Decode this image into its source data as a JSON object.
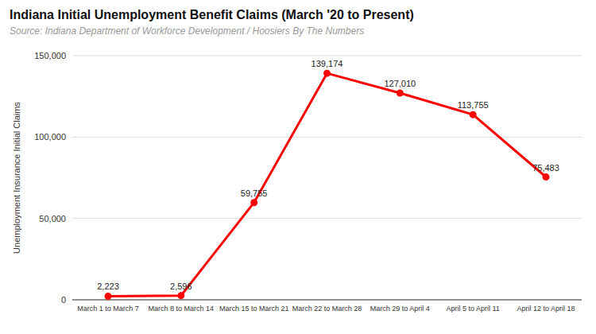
{
  "chart_data": {
    "type": "line",
    "title": "Indiana Initial Unemployment Benefit Claims (March '20 to Present)",
    "subtitle": "Source: Indiana Department of Workforce Development / Hoosiers By The Numbers",
    "y_label": "Unemployment Insurance Initial Claims",
    "categories": [
      "March 1 to March 7",
      "March 8 to March 14",
      "March 15 to March 21",
      "March 22 to March 28",
      "March 29 to April 4",
      "April 5 to April 11",
      "April 12 to April 18"
    ],
    "values": [
      2223,
      2596,
      59755,
      139174,
      127010,
      113755,
      75483
    ],
    "value_labels": [
      "2,223",
      "2,596",
      "59,755",
      "139,174",
      "127,010",
      "113,755",
      "75,483"
    ],
    "color": "#ff0000",
    "marker": "circle",
    "data_labels": true,
    "ylim": [
      0,
      150000
    ],
    "yticks": [
      0,
      {
        "value": 50000,
        "label": "50,000"
      },
      {
        "value": 100000,
        "label": "100,000"
      },
      {
        "value": 150000,
        "label": "150,000"
      }
    ],
    "grid": true
  }
}
